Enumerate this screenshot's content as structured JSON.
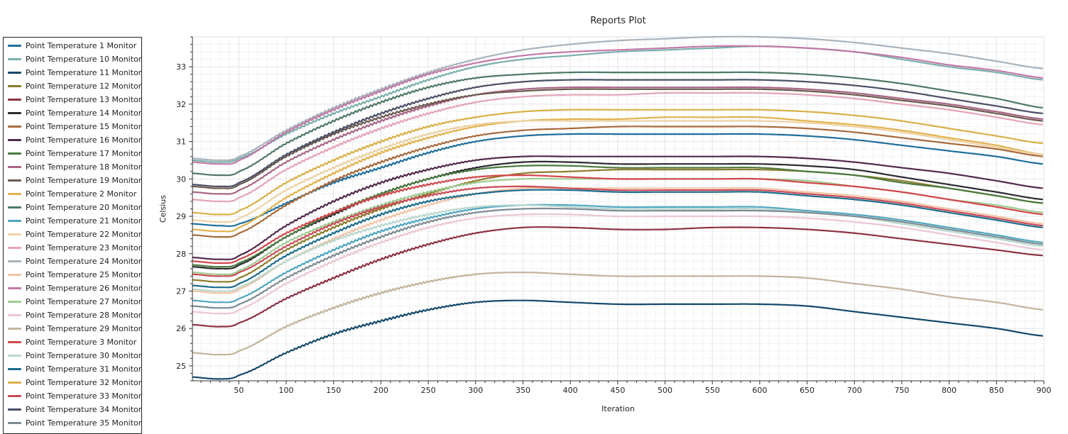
{
  "chart_data": {
    "type": "line",
    "title": "Reports Plot",
    "xlabel": "Iteration",
    "ylabel": "Celsius",
    "xlim": [
      1,
      900
    ],
    "ylim": [
      24.6,
      33.8
    ],
    "x_ticks": [
      50,
      100,
      150,
      200,
      250,
      300,
      350,
      400,
      450,
      500,
      550,
      600,
      650,
      700,
      750,
      800,
      850,
      900
    ],
    "y_ticks": [
      25,
      26,
      27,
      28,
      29,
      30,
      31,
      32,
      33
    ],
    "grid": true,
    "legend_position": "left",
    "x": [
      1,
      30,
      50,
      100,
      150,
      200,
      250,
      300,
      350,
      400,
      450,
      500,
      550,
      600,
      650,
      700,
      750,
      800,
      850,
      900
    ],
    "series": [
      {
        "name": "Point Temperature 1 Monitor",
        "color": "#1f6f9c",
        "values": [
          28.8,
          28.75,
          28.8,
          29.35,
          29.9,
          30.3,
          30.7,
          31.0,
          31.15,
          31.2,
          31.2,
          31.2,
          31.2,
          31.2,
          31.15,
          31.05,
          30.9,
          30.75,
          30.6,
          30.4
        ]
      },
      {
        "name": "Point Temperature 10 Monitor",
        "color": "#7ab0ac",
        "values": [
          30.5,
          30.45,
          30.55,
          31.2,
          31.75,
          32.2,
          32.65,
          33.0,
          33.2,
          33.3,
          33.4,
          33.45,
          33.5,
          33.55,
          33.5,
          33.4,
          33.2,
          33.0,
          32.85,
          32.65
        ]
      },
      {
        "name": "Point Temperature 11 Monitor",
        "color": "#14496b",
        "values": [
          24.7,
          24.65,
          24.75,
          25.35,
          25.85,
          26.2,
          26.5,
          26.7,
          26.75,
          26.7,
          26.65,
          26.65,
          26.65,
          26.65,
          26.6,
          26.45,
          26.3,
          26.15,
          26.0,
          25.8
        ]
      },
      {
        "name": "Point Temperature 12 Monitor",
        "color": "#8d7b2a",
        "values": [
          27.3,
          27.25,
          27.35,
          28.1,
          28.7,
          29.2,
          29.6,
          29.95,
          30.15,
          30.2,
          30.25,
          30.25,
          30.25,
          30.25,
          30.2,
          30.1,
          29.95,
          29.75,
          29.55,
          29.35
        ]
      },
      {
        "name": "Point Temperature 13 Monitor",
        "color": "#8d3143",
        "values": [
          26.1,
          26.05,
          26.15,
          26.8,
          27.35,
          27.85,
          28.25,
          28.55,
          28.7,
          28.7,
          28.65,
          28.65,
          28.7,
          28.7,
          28.65,
          28.55,
          28.4,
          28.25,
          28.1,
          27.95
        ]
      },
      {
        "name": "Point Temperature 14 Monitor",
        "color": "#2b2a30",
        "values": [
          27.65,
          27.6,
          27.7,
          28.45,
          29.05,
          29.6,
          30.0,
          30.3,
          30.45,
          30.45,
          30.4,
          30.4,
          30.4,
          30.4,
          30.35,
          30.25,
          30.05,
          29.85,
          29.65,
          29.45
        ]
      },
      {
        "name": "Point Temperature 15 Monitor",
        "color": "#a86a3c",
        "values": [
          28.5,
          28.45,
          28.55,
          29.3,
          29.95,
          30.45,
          30.85,
          31.15,
          31.3,
          31.35,
          31.4,
          31.4,
          31.4,
          31.4,
          31.35,
          31.25,
          31.1,
          30.95,
          30.8,
          30.6
        ]
      },
      {
        "name": "Point Temperature 16 Monitor",
        "color": "#512a4a",
        "values": [
          27.9,
          27.85,
          27.95,
          28.75,
          29.4,
          29.9,
          30.25,
          30.5,
          30.6,
          30.6,
          30.6,
          30.6,
          30.6,
          30.6,
          30.55,
          30.45,
          30.3,
          30.15,
          29.95,
          29.75
        ]
      },
      {
        "name": "Point Temperature 17 Monitor",
        "color": "#4b7a3e",
        "values": [
          27.7,
          27.65,
          27.75,
          28.45,
          29.1,
          29.6,
          30.0,
          30.25,
          30.35,
          30.35,
          30.3,
          30.3,
          30.3,
          30.3,
          30.2,
          30.1,
          29.9,
          29.75,
          29.55,
          29.35
        ]
      },
      {
        "name": "Point Temperature 18 Monitor",
        "color": "#a86585",
        "values": [
          29.65,
          29.6,
          29.7,
          30.45,
          31.05,
          31.55,
          31.95,
          32.25,
          32.4,
          32.45,
          32.45,
          32.45,
          32.45,
          32.45,
          32.4,
          32.3,
          32.15,
          32.0,
          31.8,
          31.6
        ]
      },
      {
        "name": "Point Temperature 19 Monitor",
        "color": "#6b5a4e",
        "values": [
          29.8,
          29.75,
          29.85,
          30.6,
          31.2,
          31.65,
          32.0,
          32.25,
          32.35,
          32.4,
          32.4,
          32.4,
          32.4,
          32.4,
          32.35,
          32.25,
          32.1,
          31.95,
          31.75,
          31.55
        ]
      },
      {
        "name": "Point Temperature 2 Monitor",
        "color": "#e2b24c",
        "values": [
          28.65,
          28.6,
          28.7,
          29.5,
          30.15,
          30.7,
          31.1,
          31.4,
          31.55,
          31.6,
          31.6,
          31.65,
          31.65,
          31.65,
          31.55,
          31.45,
          31.3,
          31.1,
          30.9,
          30.65
        ]
      },
      {
        "name": "Point Temperature 20 Monitor",
        "color": "#4e7a64",
        "values": [
          30.15,
          30.1,
          30.2,
          30.95,
          31.55,
          32.05,
          32.45,
          32.7,
          32.8,
          32.85,
          32.85,
          32.85,
          32.85,
          32.85,
          32.8,
          32.7,
          32.55,
          32.35,
          32.15,
          31.9
        ]
      },
      {
        "name": "Point Temperature 21 Monitor",
        "color": "#4fa6c0",
        "values": [
          26.75,
          26.7,
          26.8,
          27.5,
          28.1,
          28.6,
          28.95,
          29.2,
          29.3,
          29.3,
          29.25,
          29.25,
          29.25,
          29.25,
          29.15,
          29.05,
          28.9,
          28.7,
          28.5,
          28.3
        ]
      },
      {
        "name": "Point Temperature 22 Monitor",
        "color": "#ecd2a4",
        "values": [
          28.9,
          28.85,
          28.95,
          29.7,
          30.3,
          30.8,
          31.2,
          31.45,
          31.55,
          31.55,
          31.55,
          31.55,
          31.55,
          31.55,
          31.5,
          31.4,
          31.25,
          31.05,
          30.85,
          30.65
        ]
      },
      {
        "name": "Point Temperature 23 Monitor",
        "color": "#e5a3b6",
        "values": [
          29.45,
          29.4,
          29.5,
          30.25,
          30.85,
          31.35,
          31.75,
          32.05,
          32.2,
          32.25,
          32.25,
          32.3,
          32.3,
          32.3,
          32.25,
          32.15,
          32.0,
          31.85,
          31.65,
          31.45
        ]
      },
      {
        "name": "Point Temperature 24 Monitor",
        "color": "#a9b3bb",
        "values": [
          30.55,
          30.5,
          30.6,
          31.3,
          31.9,
          32.4,
          32.85,
          33.2,
          33.45,
          33.6,
          33.7,
          33.75,
          33.8,
          33.8,
          33.75,
          33.65,
          33.5,
          33.35,
          33.15,
          32.95
        ]
      },
      {
        "name": "Point Temperature 25 Monitor",
        "color": "#f2c3a6",
        "values": [
          27.0,
          26.95,
          27.05,
          27.8,
          28.4,
          28.9,
          29.3,
          29.6,
          29.75,
          29.75,
          29.75,
          29.75,
          29.75,
          29.75,
          29.65,
          29.55,
          29.4,
          29.2,
          29.0,
          28.8
        ]
      },
      {
        "name": "Point Temperature 26 Monitor",
        "color": "#c27aa7",
        "values": [
          30.45,
          30.4,
          30.5,
          31.25,
          31.85,
          32.35,
          32.8,
          33.1,
          33.3,
          33.4,
          33.45,
          33.5,
          33.55,
          33.55,
          33.5,
          33.4,
          33.25,
          33.05,
          32.9,
          32.7
        ]
      },
      {
        "name": "Point Temperature 27 Monitor",
        "color": "#9fcb92",
        "values": [
          27.5,
          27.45,
          27.55,
          28.3,
          28.85,
          29.3,
          29.65,
          29.9,
          30.0,
          30.0,
          30.0,
          30.0,
          30.0,
          30.0,
          29.95,
          29.8,
          29.65,
          29.45,
          29.3,
          29.1
        ]
      },
      {
        "name": "Point Temperature 28 Monitor",
        "color": "#ebc7d3",
        "values": [
          26.45,
          26.4,
          26.5,
          27.2,
          27.8,
          28.3,
          28.7,
          28.95,
          29.05,
          29.05,
          29.0,
          29.0,
          29.0,
          29.0,
          28.95,
          28.85,
          28.7,
          28.5,
          28.3,
          28.1
        ]
      },
      {
        "name": "Point Temperature 29 Monitor",
        "color": "#c2b49c",
        "values": [
          25.35,
          25.3,
          25.4,
          26.05,
          26.55,
          26.95,
          27.25,
          27.45,
          27.5,
          27.45,
          27.4,
          27.4,
          27.4,
          27.4,
          27.35,
          27.2,
          27.05,
          26.85,
          26.7,
          26.5
        ]
      },
      {
        "name": "Point Temperature 3 Monitor",
        "color": "#d1474c",
        "values": [
          27.8,
          27.75,
          27.85,
          28.55,
          29.1,
          29.55,
          29.85,
          30.05,
          30.1,
          30.05,
          30.0,
          30.0,
          30.0,
          30.0,
          29.9,
          29.8,
          29.65,
          29.45,
          29.25,
          29.05
        ]
      },
      {
        "name": "Point Temperature 30 Monitor",
        "color": "#b9d8cf",
        "values": [
          27.05,
          27.0,
          27.1,
          27.8,
          28.35,
          28.75,
          29.05,
          29.25,
          29.3,
          29.25,
          29.2,
          29.2,
          29.2,
          29.2,
          29.1,
          29.0,
          28.8,
          28.6,
          28.4,
          28.2
        ]
      },
      {
        "name": "Point Temperature 31 Monitor",
        "color": "#1c6c8c",
        "values": [
          27.15,
          27.1,
          27.2,
          27.95,
          28.55,
          29.05,
          29.4,
          29.6,
          29.7,
          29.7,
          29.65,
          29.65,
          29.65,
          29.65,
          29.55,
          29.45,
          29.3,
          29.1,
          28.9,
          28.7
        ]
      },
      {
        "name": "Point Temperature 32 Monitor",
        "color": "#d9b046",
        "values": [
          29.1,
          29.05,
          29.15,
          29.9,
          30.5,
          31.0,
          31.4,
          31.65,
          31.8,
          31.85,
          31.85,
          31.85,
          31.85,
          31.85,
          31.8,
          31.7,
          31.55,
          31.35,
          31.15,
          30.95
        ]
      },
      {
        "name": "Point Temperature 33 Monitor",
        "color": "#c94a57",
        "values": [
          27.45,
          27.4,
          27.5,
          28.2,
          28.8,
          29.25,
          29.55,
          29.75,
          29.8,
          29.75,
          29.7,
          29.7,
          29.7,
          29.7,
          29.6,
          29.5,
          29.35,
          29.15,
          28.95,
          28.75
        ]
      },
      {
        "name": "Point Temperature 34 Monitor",
        "color": "#4a4f66",
        "values": [
          29.85,
          29.8,
          29.9,
          30.65,
          31.25,
          31.75,
          32.15,
          32.45,
          32.6,
          32.65,
          32.65,
          32.65,
          32.65,
          32.65,
          32.6,
          32.5,
          32.35,
          32.15,
          31.95,
          31.75
        ]
      },
      {
        "name": "Point Temperature 35 Monitor",
        "color": "#7d8a92",
        "values": [
          26.6,
          26.55,
          26.65,
          27.35,
          27.95,
          28.45,
          28.85,
          29.1,
          29.2,
          29.2,
          29.15,
          29.15,
          29.15,
          29.15,
          29.1,
          29.0,
          28.85,
          28.65,
          28.45,
          28.25
        ]
      }
    ]
  }
}
